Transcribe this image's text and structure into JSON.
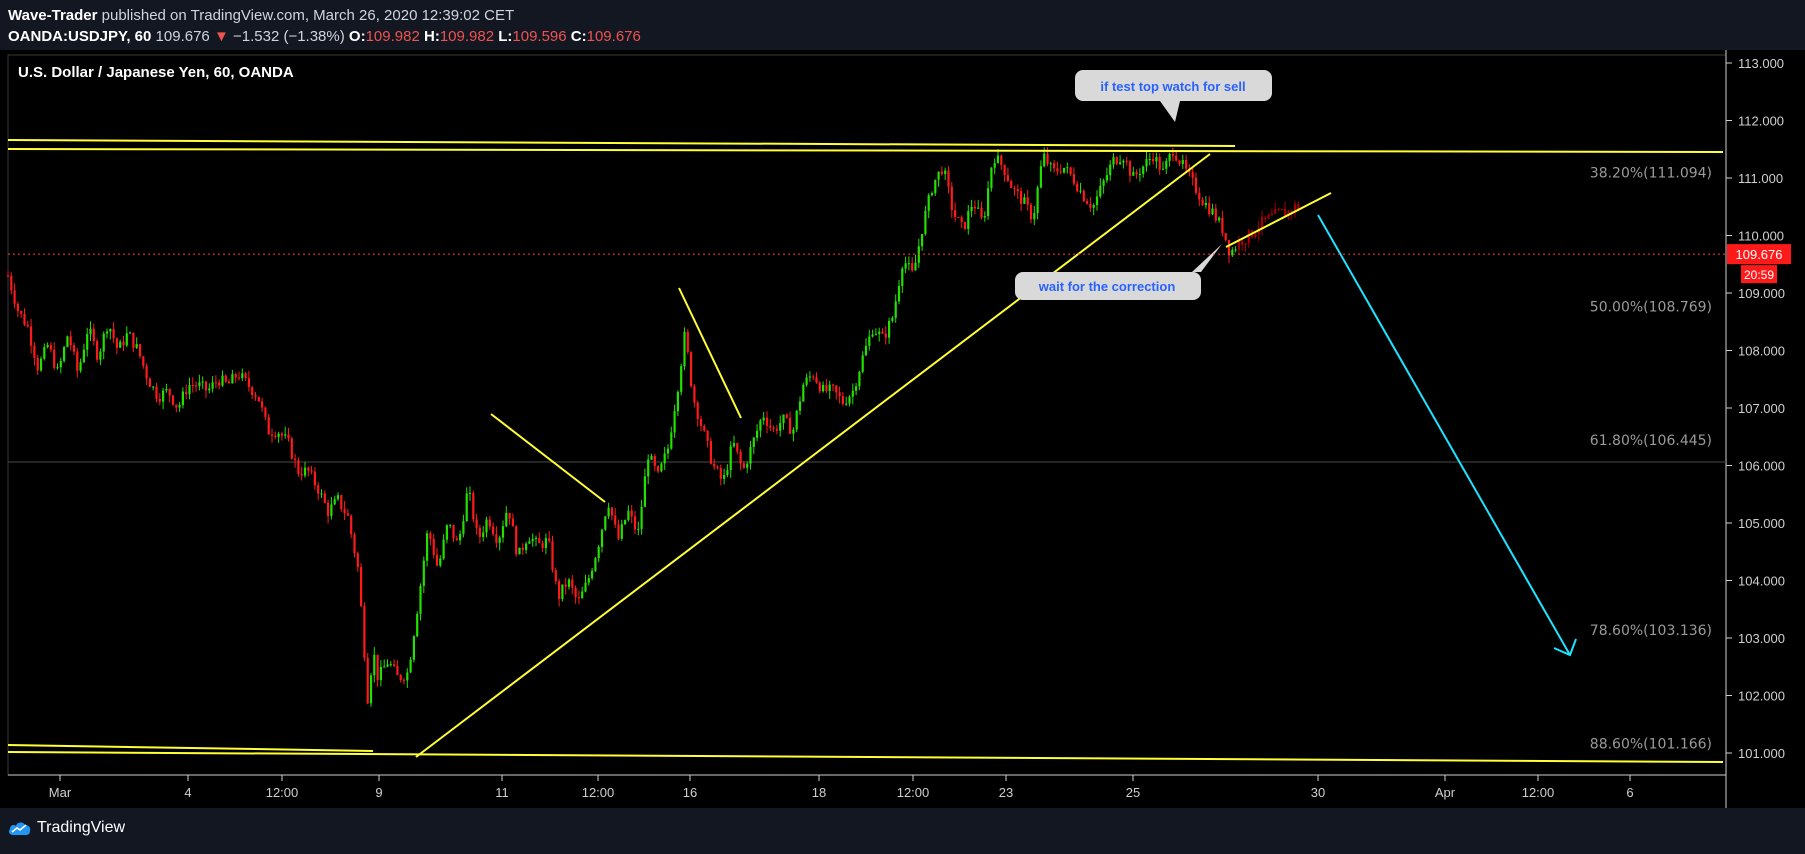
{
  "header": {
    "author": "Wave-Trader",
    "published": "published on TradingView.com, March 26, 2020 12:39:02 CET",
    "symbol": "OANDA:USDJPY, 60",
    "last": "109.676",
    "down_glyph": "▼",
    "change": "−1.532 (−1.38%)",
    "o_label": "O:",
    "o_value": "109.982",
    "h_label": "H:",
    "h_value": "109.982",
    "l_label": "L:",
    "l_value": "109.596",
    "c_label": "C:",
    "c_value": "109.676"
  },
  "footer": {
    "brand": "TradingView"
  },
  "colors": {
    "up": "#22e000",
    "down": "#ff1a1a",
    "pattern": "#ffff33",
    "arrow": "#1ee3ff",
    "price_line": "#ff3b3b",
    "axis_text": "#cfcfcf",
    "fib_text": "#9a9a9a",
    "callout_bg": "#d9d9d9",
    "callout_text": "#2962ff"
  },
  "chart_data": {
    "type": "candlestick",
    "title": "U.S. Dollar / Japanese Yen, 60, OANDA",
    "y_ticks": [
      "113.000",
      "112.000",
      "111.000",
      "110.000",
      "109.000",
      "108.000",
      "107.000",
      "106.000",
      "105.000",
      "104.000",
      "103.000",
      "102.000",
      "101.000"
    ],
    "x_ticks": [
      "Mar",
      "4",
      "12:00",
      "9",
      "11",
      "12:00",
      "16",
      "18",
      "12:00",
      "23",
      "25",
      "30",
      "Apr",
      "12:00",
      "6"
    ],
    "ylim": [
      100.8,
      113.2
    ],
    "current_price": "109.676",
    "countdown": "20:59",
    "fib_levels": [
      {
        "label": "38.20%(111.094)",
        "value": 111.094
      },
      {
        "label": "50.00%(108.769)",
        "value": 108.769
      },
      {
        "label": "61.80%(106.445)",
        "value": 106.445
      },
      {
        "label": "78.60%(103.136)",
        "value": 103.136
      },
      {
        "label": "88.60%(101.166)",
        "value": 101.166
      }
    ],
    "reference_level": 106.06,
    "price_path": [
      [
        0,
        109.3
      ],
      [
        10,
        108.7
      ],
      [
        20,
        108.4
      ],
      [
        30,
        107.7
      ],
      [
        40,
        108.1
      ],
      [
        50,
        107.6
      ],
      [
        60,
        108.3
      ],
      [
        70,
        107.6
      ],
      [
        80,
        108.4
      ],
      [
        90,
        107.9
      ],
      [
        100,
        108.5
      ],
      [
        110,
        108.0
      ],
      [
        120,
        108.3
      ],
      [
        130,
        108.0
      ],
      [
        140,
        107.5
      ],
      [
        150,
        107.2
      ],
      [
        160,
        107.3
      ],
      [
        170,
        107.0
      ],
      [
        180,
        107.4
      ],
      [
        190,
        107.4
      ],
      [
        200,
        107.3
      ],
      [
        210,
        107.5
      ],
      [
        220,
        107.4
      ],
      [
        230,
        107.6
      ],
      [
        240,
        107.4
      ],
      [
        250,
        107.2
      ],
      [
        260,
        106.6
      ],
      [
        270,
        106.6
      ],
      [
        280,
        106.4
      ],
      [
        290,
        105.9
      ],
      [
        300,
        105.9
      ],
      [
        310,
        105.6
      ],
      [
        320,
        105.2
      ],
      [
        330,
        105.4
      ],
      [
        340,
        105.1
      ],
      [
        350,
        104.2
      ],
      [
        355,
        103.1
      ],
      [
        360,
        101.9
      ],
      [
        365,
        102.8
      ],
      [
        370,
        102.3
      ],
      [
        380,
        102.6
      ],
      [
        390,
        102.3
      ],
      [
        400,
        102.4
      ],
      [
        410,
        103.6
      ],
      [
        420,
        104.9
      ],
      [
        430,
        104.2
      ],
      [
        440,
        105.0
      ],
      [
        450,
        104.6
      ],
      [
        460,
        105.6
      ],
      [
        470,
        104.7
      ],
      [
        480,
        105.1
      ],
      [
        490,
        104.7
      ],
      [
        500,
        105.3
      ],
      [
        510,
        104.4
      ],
      [
        520,
        104.8
      ],
      [
        530,
        104.6
      ],
      [
        540,
        104.7
      ],
      [
        550,
        103.7
      ],
      [
        560,
        104.0
      ],
      [
        570,
        103.6
      ],
      [
        580,
        104.0
      ],
      [
        590,
        104.6
      ],
      [
        600,
        105.4
      ],
      [
        610,
        104.7
      ],
      [
        620,
        105.2
      ],
      [
        630,
        104.8
      ],
      [
        640,
        106.2
      ],
      [
        650,
        105.8
      ],
      [
        660,
        106.3
      ],
      [
        670,
        107.4
      ],
      [
        677,
        108.3
      ],
      [
        685,
        107.2
      ],
      [
        695,
        106.6
      ],
      [
        705,
        106.0
      ],
      [
        715,
        105.7
      ],
      [
        725,
        106.4
      ],
      [
        735,
        105.9
      ],
      [
        745,
        106.4
      ],
      [
        755,
        106.9
      ],
      [
        765,
        106.6
      ],
      [
        775,
        106.8
      ],
      [
        785,
        106.6
      ],
      [
        795,
        107.4
      ],
      [
        805,
        107.6
      ],
      [
        815,
        107.3
      ],
      [
        825,
        107.3
      ],
      [
        835,
        107.1
      ],
      [
        845,
        107.3
      ],
      [
        855,
        107.9
      ],
      [
        865,
        108.4
      ],
      [
        875,
        108.2
      ],
      [
        885,
        108.6
      ],
      [
        895,
        109.6
      ],
      [
        905,
        109.3
      ],
      [
        915,
        110.2
      ],
      [
        925,
        110.9
      ],
      [
        935,
        111.2
      ],
      [
        945,
        110.4
      ],
      [
        955,
        110.1
      ],
      [
        965,
        110.6
      ],
      [
        975,
        110.2
      ],
      [
        985,
        111.4
      ],
      [
        995,
        111.2
      ],
      [
        1005,
        110.8
      ],
      [
        1015,
        110.6
      ],
      [
        1025,
        110.3
      ],
      [
        1035,
        111.4
      ],
      [
        1045,
        111.1
      ],
      [
        1055,
        111.2
      ],
      [
        1065,
        111.0
      ],
      [
        1075,
        110.7
      ],
      [
        1085,
        110.5
      ],
      [
        1095,
        110.9
      ],
      [
        1105,
        111.3
      ],
      [
        1115,
        111.4
      ],
      [
        1125,
        111.0
      ],
      [
        1135,
        111.2
      ],
      [
        1145,
        111.4
      ],
      [
        1155,
        111.1
      ],
      [
        1165,
        111.5
      ],
      [
        1175,
        111.2
      ],
      [
        1185,
        110.9
      ],
      [
        1195,
        110.6
      ],
      [
        1205,
        110.4
      ],
      [
        1215,
        110.1
      ],
      [
        1222,
        109.7
      ],
      [
        1232,
        109.9
      ],
      [
        1242,
        110.0
      ],
      [
        1252,
        110.2
      ],
      [
        1262,
        110.3
      ],
      [
        1272,
        110.4
      ],
      [
        1280,
        110.4
      ],
      [
        1286,
        110.5
      ],
      [
        1292,
        110.5
      ]
    ]
  },
  "annotations": {
    "callout_top": "if test top watch for sell",
    "callout_bottom": "wait for the correction"
  }
}
